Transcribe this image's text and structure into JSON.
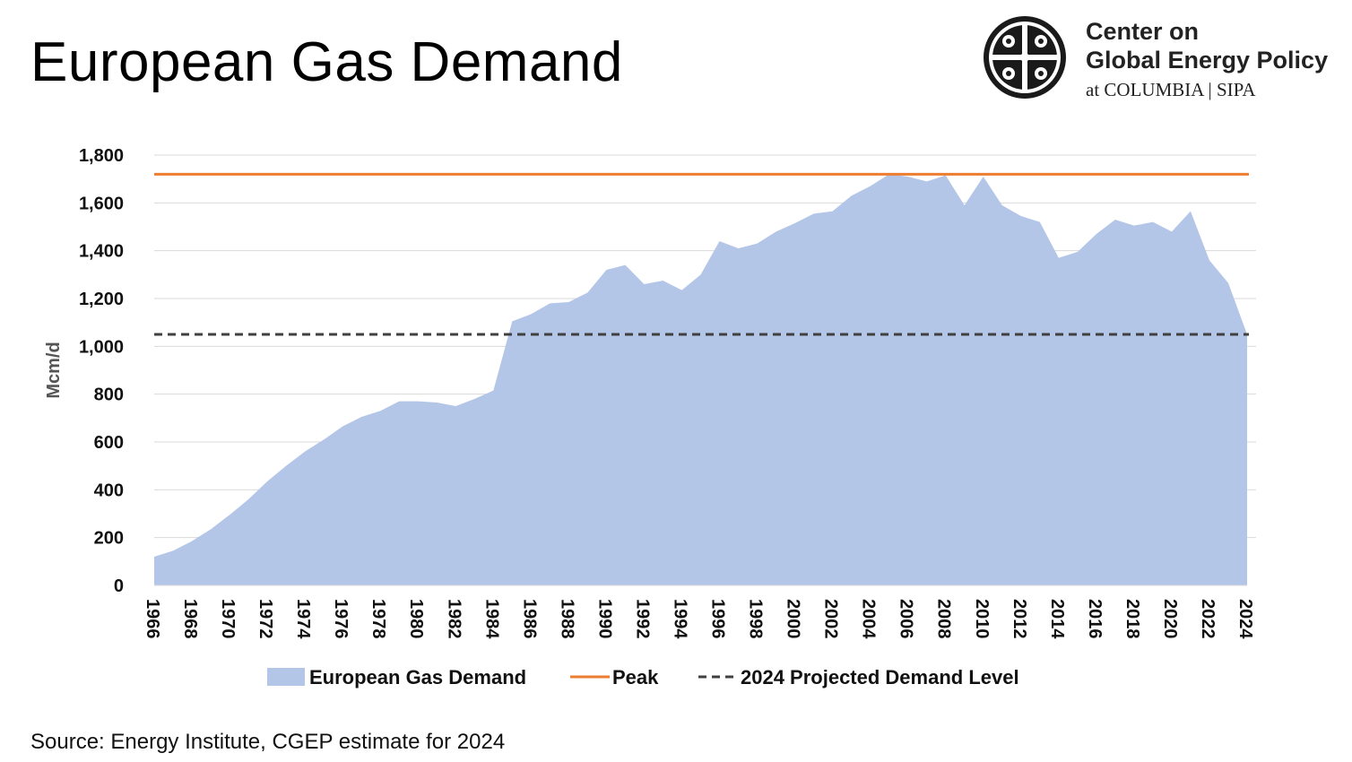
{
  "page": {
    "title": "European Gas Demand",
    "source": "Source: Energy Institute, CGEP estimate for 2024"
  },
  "logo": {
    "line1": "Center on",
    "line2": "Global Energy Policy",
    "line3": "at COLUMBIA | SIPA"
  },
  "colors": {
    "area": "#b4c6e7",
    "peak": "#ed7d31",
    "projected": "#404040",
    "grid": "#d9d9d9"
  },
  "chart_data": {
    "type": "area",
    "ylabel": "Mcm/d",
    "xlabel": "",
    "ylim": [
      0,
      1800
    ],
    "yticks": [
      "0",
      "200",
      "400",
      "600",
      "800",
      "1,000",
      "1,200",
      "1,400",
      "1,600",
      "1,800"
    ],
    "grid": "horizontal",
    "legend_position": "bottom",
    "x": [
      1966,
      1967,
      1968,
      1969,
      1970,
      1971,
      1972,
      1973,
      1974,
      1975,
      1976,
      1977,
      1978,
      1979,
      1980,
      1981,
      1982,
      1983,
      1984,
      1985,
      1986,
      1987,
      1988,
      1989,
      1990,
      1991,
      1992,
      1993,
      1994,
      1995,
      1996,
      1997,
      1998,
      1999,
      2000,
      2001,
      2002,
      2003,
      2004,
      2005,
      2006,
      2007,
      2008,
      2009,
      2010,
      2011,
      2012,
      2013,
      2014,
      2015,
      2016,
      2017,
      2018,
      2019,
      2020,
      2021,
      2022,
      2023,
      2024
    ],
    "xticks": [
      "1966",
      "1968",
      "1970",
      "1972",
      "1974",
      "1976",
      "1978",
      "1980",
      "1982",
      "1984",
      "1986",
      "1988",
      "1990",
      "1992",
      "1994",
      "1996",
      "1998",
      "2000",
      "2002",
      "2004",
      "2006",
      "2008",
      "2010",
      "2012",
      "2014",
      "2016",
      "2018",
      "2020",
      "2022",
      "2024"
    ],
    "series": [
      {
        "name": "European Gas Demand",
        "kind": "area",
        "values": [
          120,
          145,
          185,
          235,
          295,
          360,
          435,
          500,
          560,
          610,
          665,
          705,
          730,
          770,
          770,
          765,
          750,
          780,
          815,
          1105,
          1135,
          1180,
          1185,
          1225,
          1320,
          1340,
          1260,
          1275,
          1235,
          1300,
          1440,
          1410,
          1430,
          1480,
          1515,
          1555,
          1565,
          1630,
          1670,
          1720,
          1710,
          1690,
          1715,
          1590,
          1710,
          1590,
          1545,
          1520,
          1370,
          1395,
          1470,
          1530,
          1505,
          1520,
          1480,
          1565,
          1360,
          1265,
          1050
        ]
      },
      {
        "name": "Peak",
        "kind": "line",
        "value": 1720
      },
      {
        "name": "2024 Projected Demand Level",
        "kind": "dashed-line",
        "value": 1050
      }
    ]
  }
}
